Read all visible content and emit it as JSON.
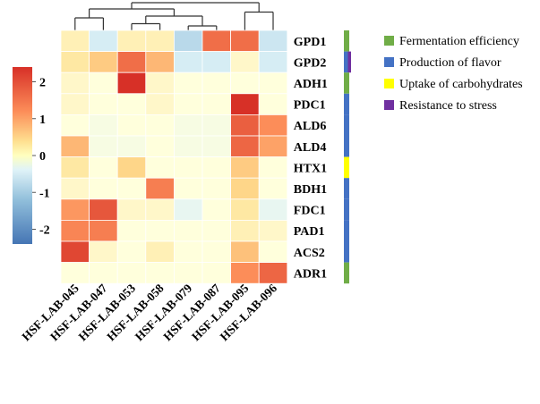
{
  "chart_data": {
    "type": "heatmap",
    "title": "",
    "xlabel": "",
    "ylabel": "",
    "columns": [
      "HSF-LAB-045",
      "HSF-LAB-047",
      "HSF-LAB-053",
      "HSF-LAB-058",
      "HSF-LAB-079",
      "HSF-LAB-087",
      "HSF-LAB-095",
      "HSF-LAB-096"
    ],
    "rows": [
      "GPD1",
      "GPD2",
      "ADH1",
      "PDC1",
      "ALD6",
      "ALD4",
      "HTX1",
      "BDH1",
      "FDC1",
      "PAD1",
      "ACS2",
      "ADR1"
    ],
    "values": [
      [
        0.2,
        -0.5,
        0.2,
        0.2,
        -0.8,
        1.6,
        1.6,
        -0.6
      ],
      [
        0.3,
        0.6,
        1.6,
        0.8,
        -0.5,
        -0.5,
        0.1,
        -0.5
      ],
      [
        0.1,
        0.0,
        2.6,
        0.1,
        0.0,
        0.0,
        0.0,
        0.0
      ],
      [
        0.1,
        0.0,
        0.0,
        0.1,
        0.0,
        0.0,
        2.6,
        0.0
      ],
      [
        0.0,
        -0.1,
        0.0,
        0.0,
        -0.1,
        -0.1,
        1.8,
        1.2
      ],
      [
        0.8,
        -0.1,
        -0.1,
        0.0,
        -0.1,
        -0.1,
        1.7,
        1.0
      ],
      [
        0.3,
        0.0,
        0.5,
        0.0,
        0.0,
        0.0,
        0.6,
        0.0
      ],
      [
        0.1,
        0.0,
        0.0,
        1.4,
        0.0,
        0.0,
        0.5,
        0.0
      ],
      [
        1.1,
        1.9,
        0.1,
        0.1,
        -0.3,
        0.0,
        0.3,
        -0.3
      ],
      [
        1.3,
        1.4,
        0.0,
        0.0,
        0.0,
        0.0,
        0.2,
        0.1
      ],
      [
        2.1,
        0.1,
        0.0,
        0.2,
        0.0,
        0.0,
        0.7,
        0.0
      ],
      [
        0.0,
        0.0,
        0.0,
        0.0,
        0.0,
        0.0,
        1.2,
        1.7
      ]
    ],
    "color_scale": {
      "ticks": [
        2,
        1,
        0,
        -1,
        -2
      ],
      "range": [
        -2.4,
        2.4
      ],
      "colors": {
        "high": "#d73027",
        "mid_high": "#fee090",
        "mid": "#ffffbf",
        "mid_low": "#e0f3f8",
        "low": "#4575b4"
      }
    },
    "row_categories": [
      "Fermentation efficiency",
      "Production of flavor",
      "Fermentation efficiency",
      "Production of flavor",
      "Production of flavor",
      "Production of flavor",
      "Uptake of carbohydrates",
      "Production of flavor",
      "Production of flavor",
      "Production of flavor",
      "Production of flavor",
      "Fermentation efficiency"
    ],
    "row_secondary_categories": [
      null,
      "Resistance to stress",
      null,
      null,
      null,
      null,
      null,
      null,
      null,
      null,
      null,
      null
    ],
    "legend": {
      "position": "top-right",
      "items": [
        {
          "label": "Fermentation efficiency",
          "color": "#70ad47"
        },
        {
          "label": "Production of flavor",
          "color": "#4472c4"
        },
        {
          "label": "Uptake of carbohydrates",
          "color": "#ffff00"
        },
        {
          "label": "Resistance to stress",
          "color": "#7030a0"
        }
      ]
    },
    "dendrogram": "column clustering tree shown above the heatmap"
  }
}
